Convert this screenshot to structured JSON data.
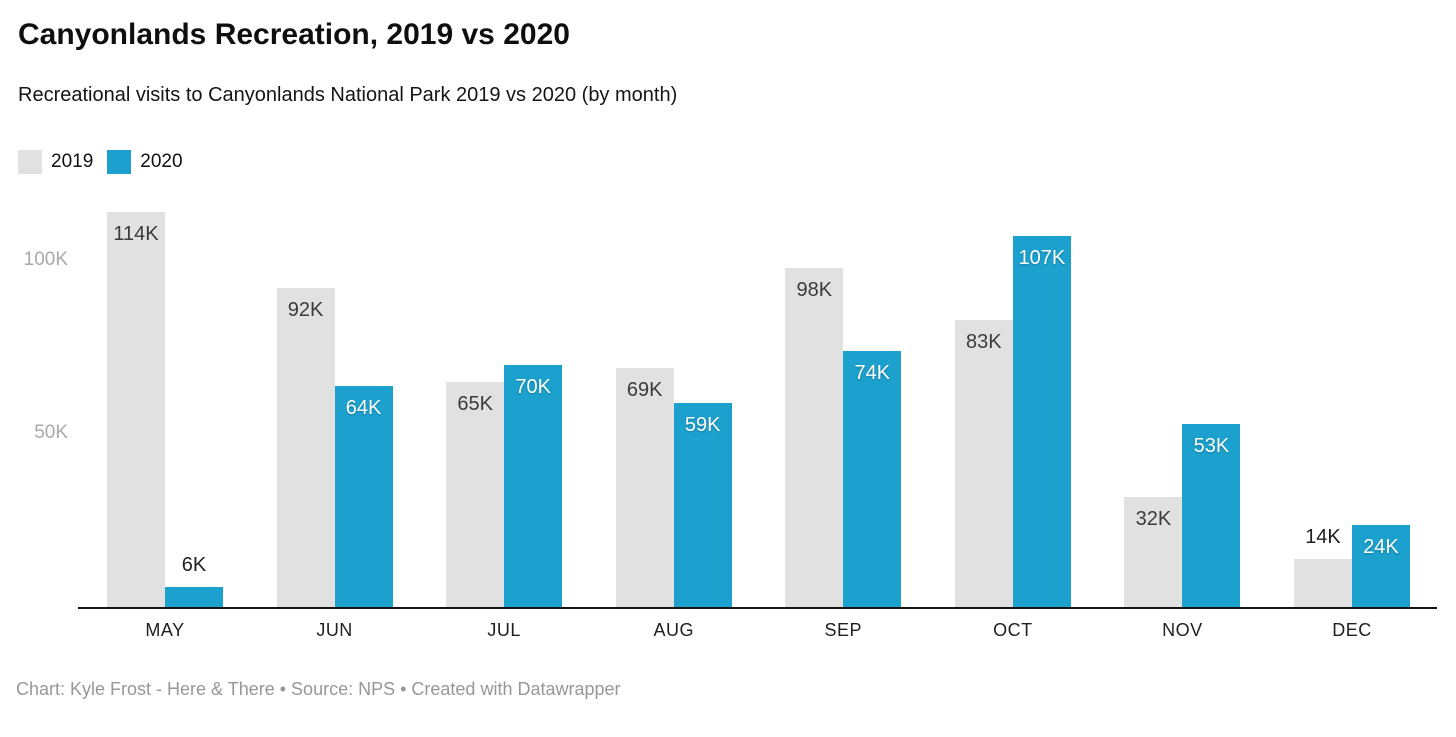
{
  "header": {
    "title": "Canyonlands Recreation, 2019 vs 2020",
    "subtitle": "Recreational visits to Canyonlands National Park 2019 vs 2020 (by month)"
  },
  "legend": [
    {
      "label": "2019",
      "color": "#e1e1e1"
    },
    {
      "label": "2020",
      "color": "#1ca1ce"
    }
  ],
  "footer": {
    "text": "Chart: Kyle Frost - Here & There • Source: NPS • Created with Datawrapper"
  },
  "colors": {
    "bar_2019": "#e1e1e1",
    "bar_2020": "#1ca1ce",
    "axis_line": "#141414",
    "y_tick_text": "#a9a9a9",
    "x_tick_text": "#1f1f1f"
  },
  "chart_data": {
    "type": "bar",
    "title": "Canyonlands Recreation, 2019 vs 2020",
    "subtitle": "Recreational visits to Canyonlands National Park 2019 vs 2020 (by month)",
    "categories": [
      "MAY",
      "JUN",
      "JUL",
      "AUG",
      "SEP",
      "OCT",
      "NOV",
      "DEC"
    ],
    "series": [
      {
        "name": "2019",
        "color": "#e1e1e1",
        "values_thousands": [
          114,
          92,
          65,
          69,
          98,
          83,
          32,
          14
        ],
        "labels": [
          "114K",
          "92K",
          "65K",
          "69K",
          "98K",
          "83K",
          "32K",
          "14K"
        ]
      },
      {
        "name": "2020",
        "color": "#1ca1ce",
        "values_thousands": [
          6,
          64,
          70,
          59,
          74,
          107,
          53,
          24
        ],
        "labels": [
          "6K",
          "64K",
          "70K",
          "59K",
          "74K",
          "107K",
          "53K",
          "24K"
        ]
      }
    ],
    "y_axis": {
      "ticks": [
        {
          "value_thousands": 50,
          "label": "50K"
        },
        {
          "value_thousands": 100,
          "label": "100K"
        }
      ],
      "range_thousands": [
        0,
        117
      ],
      "gridlines": false
    },
    "legend_position": "top-left",
    "value_labels_shown": true
  }
}
